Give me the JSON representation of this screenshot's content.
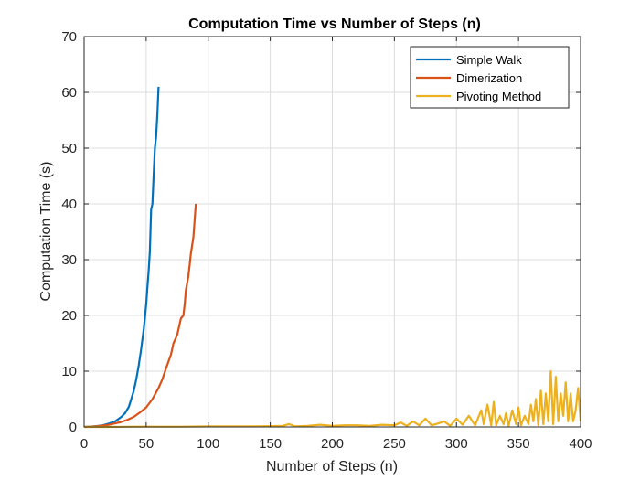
{
  "chart_data": {
    "type": "line",
    "title": "Computation Time vs Number of Steps (n)",
    "xlabel": "Number of Steps (n)",
    "ylabel": "Computation Time (s)",
    "xlim": [
      0,
      400
    ],
    "ylim": [
      0,
      70
    ],
    "xticks": [
      "0",
      "50",
      "100",
      "150",
      "200",
      "250",
      "300",
      "350",
      "400"
    ],
    "yticks": [
      "0",
      "10",
      "20",
      "30",
      "40",
      "50",
      "60",
      "70"
    ],
    "grid": true,
    "legend_position": "top-right",
    "series": [
      {
        "name": "Simple Walk",
        "color": "#0072BD",
        "x": [
          1,
          5,
          10,
          15,
          20,
          25,
          30,
          33,
          36,
          38,
          40,
          42,
          44,
          46,
          48,
          50,
          51,
          52,
          53,
          54,
          55,
          56,
          57,
          58,
          59,
          60
        ],
        "y": [
          0,
          0.05,
          0.15,
          0.3,
          0.6,
          1.0,
          1.8,
          2.5,
          3.6,
          5.0,
          6.5,
          8.5,
          11.0,
          14.0,
          17.5,
          22.0,
          25.0,
          28.0,
          31.5,
          39.0,
          40.0,
          45.0,
          50.0,
          52.0,
          56.0,
          61.0
        ]
      },
      {
        "name": "Dimerization",
        "color": "#D95319",
        "x": [
          1,
          10,
          20,
          30,
          35,
          40,
          45,
          50,
          55,
          60,
          63,
          66,
          70,
          72,
          75,
          78,
          80,
          81,
          82,
          84,
          85,
          86,
          88,
          90
        ],
        "y": [
          0,
          0.1,
          0.4,
          0.9,
          1.3,
          1.8,
          2.6,
          3.5,
          5.0,
          7.0,
          8.5,
          10.5,
          13.0,
          15.0,
          16.5,
          19.5,
          20.0,
          22.0,
          24.5,
          27.0,
          29.0,
          31.0,
          34.0,
          40.0
        ]
      },
      {
        "name": "Pivoting Method",
        "color": "#EDB120",
        "x": [
          0,
          20,
          40,
          60,
          80,
          100,
          120,
          140,
          160,
          165,
          170,
          180,
          190,
          200,
          210,
          220,
          230,
          240,
          250,
          255,
          260,
          265,
          270,
          275,
          280,
          285,
          290,
          295,
          300,
          305,
          310,
          315,
          320,
          322,
          325,
          328,
          330,
          332,
          335,
          338,
          340,
          342,
          345,
          348,
          350,
          352,
          355,
          358,
          360,
          362,
          364,
          366,
          368,
          370,
          372,
          374,
          376,
          378,
          380,
          382,
          384,
          386,
          388,
          390,
          392,
          394,
          396,
          398,
          400
        ],
        "y": [
          0,
          0,
          0.05,
          0.05,
          0.05,
          0.1,
          0.1,
          0.1,
          0.2,
          0.5,
          0.1,
          0.2,
          0.4,
          0.2,
          0.3,
          0.3,
          0.2,
          0.4,
          0.3,
          0.8,
          0.2,
          1.0,
          0.3,
          1.5,
          0.3,
          0.6,
          1.0,
          0.2,
          1.5,
          0.4,
          2.0,
          0.3,
          3.0,
          0.5,
          4.0,
          0.3,
          4.5,
          0.3,
          2.0,
          0.5,
          2.5,
          0.2,
          3.0,
          0.5,
          3.5,
          0.3,
          2.0,
          0.5,
          4.0,
          1.0,
          5.0,
          0.3,
          6.5,
          0.5,
          6.0,
          1.0,
          10.0,
          0.5,
          9.0,
          1.0,
          6.0,
          2.0,
          8.0,
          1.0,
          6.0,
          1.0,
          3.0,
          7.0,
          1.0
        ]
      }
    ]
  }
}
